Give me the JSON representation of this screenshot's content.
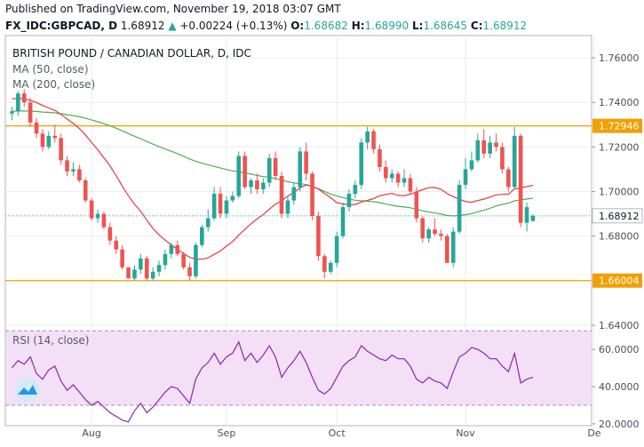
{
  "header": {
    "published": "Published on TradingView.com, November 19, 2018 03:07 GMT",
    "symbol": "FX_IDC:GBPCAD, D",
    "last": "1.68912",
    "change_arrow": "▲",
    "change": "+0.00224 (+0.13%)",
    "o_label": "O:",
    "o_value": "1.68682",
    "h_label": "H:",
    "h_value": "1.68990",
    "l_label": "L:",
    "l_value": "1.68645",
    "c_label": "C:",
    "c_value": "1.68912"
  },
  "legend": {
    "title": "BRITISH POUND / CANADIAN DOLLAR, D, IDC",
    "ma50": "MA (50, close)",
    "ma200": "MA (200, close)",
    "rsi": "RSI (14, close)"
  },
  "colors": {
    "up": "#26a69a",
    "down": "#ef5350",
    "ma50": "#e53935",
    "ma200": "#4caf50",
    "hline": "#f0a000",
    "rsi": "#8e24aa",
    "rsi_band": "#f3e0f7",
    "grid": "#e9ebef",
    "last": "#131722"
  },
  "chart_data": [
    {
      "type": "candlestick",
      "title": "BRITISH POUND / CANADIAN DOLLAR, D, IDC",
      "ylim": [
        1.64,
        1.77
      ],
      "y_ticks": [
        "1.76000",
        "1.74000",
        "1.72000",
        "1.70000",
        "1.68000",
        "1.64000"
      ],
      "x_ticks": [
        "Aug",
        "Sep",
        "Oct",
        "Nov",
        "De"
      ],
      "horizontal_levels": [
        {
          "value": 1.72946,
          "label": "1.72946"
        },
        {
          "value": 1.66004,
          "label": "1.66004"
        }
      ],
      "last_price": {
        "value": 1.68912,
        "label": "1.68912"
      },
      "candles": [
        [
          1.735,
          1.738,
          1.732,
          1.736
        ],
        [
          1.736,
          1.745,
          1.734,
          1.744
        ],
        [
          1.744,
          1.746,
          1.738,
          1.74
        ],
        [
          1.74,
          1.742,
          1.729,
          1.731
        ],
        [
          1.731,
          1.733,
          1.724,
          1.726
        ],
        [
          1.726,
          1.728,
          1.718,
          1.72
        ],
        [
          1.72,
          1.727,
          1.719,
          1.725
        ],
        [
          1.725,
          1.73,
          1.722,
          1.724
        ],
        [
          1.724,
          1.726,
          1.712,
          1.714
        ],
        [
          1.714,
          1.716,
          1.707,
          1.709
        ],
        [
          1.709,
          1.713,
          1.707,
          1.71
        ],
        [
          1.71,
          1.712,
          1.704,
          1.705
        ],
        [
          1.705,
          1.706,
          1.695,
          1.696
        ],
        [
          1.696,
          1.697,
          1.687,
          1.688
        ],
        [
          1.688,
          1.692,
          1.686,
          1.69
        ],
        [
          1.69,
          1.691,
          1.683,
          1.684
        ],
        [
          1.684,
          1.686,
          1.676,
          1.678
        ],
        [
          1.678,
          1.68,
          1.672,
          1.674
        ],
        [
          1.674,
          1.676,
          1.665,
          1.666
        ],
        [
          1.666,
          1.666,
          1.661,
          1.661
        ],
        [
          1.661,
          1.667,
          1.66,
          1.665
        ],
        [
          1.665,
          1.672,
          1.663,
          1.67
        ],
        [
          1.67,
          1.671,
          1.66,
          1.661
        ],
        [
          1.661,
          1.666,
          1.66,
          1.664
        ],
        [
          1.664,
          1.669,
          1.662,
          1.667
        ],
        [
          1.667,
          1.674,
          1.665,
          1.672
        ],
        [
          1.672,
          1.677,
          1.67,
          1.676
        ],
        [
          1.676,
          1.678,
          1.671,
          1.672
        ],
        [
          1.672,
          1.673,
          1.665,
          1.666
        ],
        [
          1.666,
          1.668,
          1.66,
          1.662
        ],
        [
          1.662,
          1.677,
          1.661,
          1.676
        ],
        [
          1.676,
          1.685,
          1.675,
          1.684
        ],
        [
          1.684,
          1.692,
          1.682,
          1.688
        ],
        [
          1.688,
          1.702,
          1.687,
          1.699
        ],
        [
          1.699,
          1.702,
          1.688,
          1.69
        ],
        [
          1.69,
          1.698,
          1.688,
          1.696
        ],
        [
          1.696,
          1.7,
          1.695,
          1.698
        ],
        [
          1.698,
          1.718,
          1.697,
          1.716
        ],
        [
          1.716,
          1.718,
          1.701,
          1.702
        ],
        [
          1.702,
          1.706,
          1.699,
          1.705
        ],
        [
          1.705,
          1.708,
          1.699,
          1.701
        ],
        [
          1.701,
          1.706,
          1.699,
          1.704
        ],
        [
          1.704,
          1.717,
          1.702,
          1.715
        ],
        [
          1.715,
          1.718,
          1.705,
          1.707
        ],
        [
          1.707,
          1.709,
          1.688,
          1.69
        ],
        [
          1.69,
          1.698,
          1.688,
          1.696
        ],
        [
          1.696,
          1.704,
          1.694,
          1.702
        ],
        [
          1.702,
          1.72,
          1.7,
          1.718
        ],
        [
          1.718,
          1.722,
          1.705,
          1.708
        ],
        [
          1.708,
          1.709,
          1.687,
          1.689
        ],
        [
          1.689,
          1.691,
          1.669,
          1.671
        ],
        [
          1.671,
          1.672,
          1.661,
          1.664
        ],
        [
          1.664,
          1.669,
          1.663,
          1.668
        ],
        [
          1.668,
          1.682,
          1.666,
          1.68
        ],
        [
          1.68,
          1.695,
          1.679,
          1.693
        ],
        [
          1.693,
          1.701,
          1.691,
          1.699
        ],
        [
          1.699,
          1.705,
          1.697,
          1.703
        ],
        [
          1.703,
          1.724,
          1.701,
          1.722
        ],
        [
          1.722,
          1.729,
          1.719,
          1.727
        ],
        [
          1.727,
          1.728,
          1.717,
          1.719
        ],
        [
          1.719,
          1.721,
          1.709,
          1.711
        ],
        [
          1.711,
          1.714,
          1.704,
          1.706
        ],
        [
          1.706,
          1.71,
          1.704,
          1.708
        ],
        [
          1.708,
          1.709,
          1.702,
          1.704
        ],
        [
          1.704,
          1.71,
          1.702,
          1.706
        ],
        [
          1.706,
          1.708,
          1.699,
          1.7
        ],
        [
          1.7,
          1.702,
          1.686,
          1.688
        ],
        [
          1.688,
          1.689,
          1.677,
          1.679
        ],
        [
          1.679,
          1.684,
          1.677,
          1.683
        ],
        [
          1.683,
          1.688,
          1.68,
          1.681
        ],
        [
          1.681,
          1.683,
          1.678,
          1.68
        ],
        [
          1.68,
          1.681,
          1.668,
          1.668
        ],
        [
          1.668,
          1.684,
          1.666,
          1.682
        ],
        [
          1.682,
          1.705,
          1.681,
          1.703
        ],
        [
          1.703,
          1.715,
          1.701,
          1.71
        ],
        [
          1.71,
          1.718,
          1.709,
          1.714
        ],
        [
          1.714,
          1.726,
          1.713,
          1.723
        ],
        [
          1.723,
          1.728,
          1.715,
          1.717
        ],
        [
          1.717,
          1.725,
          1.715,
          1.722
        ],
        [
          1.722,
          1.726,
          1.718,
          1.72
        ],
        [
          1.72,
          1.722,
          1.708,
          1.71
        ],
        [
          1.71,
          1.711,
          1.7,
          1.702
        ],
        [
          1.702,
          1.729,
          1.701,
          1.725
        ],
        [
          1.725,
          1.726,
          1.684,
          1.686
        ],
        [
          1.686,
          1.695,
          1.682,
          1.693
        ],
        [
          1.6868,
          1.6899,
          1.6865,
          1.6891
        ]
      ]
    },
    {
      "type": "line",
      "title": "RSI (14, close)",
      "ylim": [
        19,
        73
      ],
      "y_ticks": [
        "60.0000",
        "40.0000",
        "20.0000"
      ],
      "band": [
        30,
        70
      ],
      "values": [
        50,
        54,
        52,
        56,
        47,
        44,
        49,
        51,
        43,
        38,
        41,
        37,
        33,
        30,
        32,
        29,
        26,
        24,
        22,
        21,
        27,
        31,
        26,
        29,
        33,
        37,
        40,
        39,
        35,
        31,
        44,
        50,
        53,
        58,
        52,
        56,
        58,
        64,
        54,
        58,
        53,
        57,
        62,
        56,
        45,
        50,
        54,
        59,
        53,
        45,
        38,
        36,
        39,
        45,
        51,
        54,
        56,
        62,
        59,
        57,
        55,
        54,
        57,
        55,
        55,
        51,
        44,
        42,
        45,
        43,
        42,
        39,
        48,
        56,
        58,
        61,
        60,
        58,
        55,
        55,
        51,
        48,
        58,
        42,
        44,
        45
      ]
    }
  ]
}
